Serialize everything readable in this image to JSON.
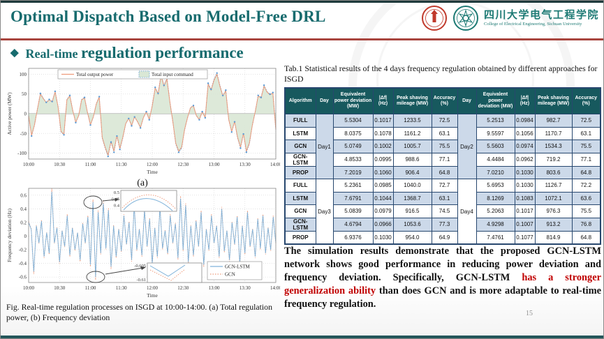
{
  "slide": {
    "title": "Optimal Dispatch Based on Model-Free DRL",
    "page_number": "15",
    "watermark_year": "1896",
    "logo": {
      "cn": "四川大学电气工程学院",
      "en": "College of Electrical Engineering, Sichuan University"
    },
    "section_heading": {
      "bullet": "◆",
      "prefix": "Real-time ",
      "rest": "regulation performance"
    }
  },
  "figure_caption": "Fig. Real-time regulation processes on ISGD at 10:00-14:00. (a) Total regulation power, (b) Frequency deviation",
  "analysis": {
    "seg1": "The simulation results demonstrate that the proposed GCN-LSTM network shows good performance in reducing power deviation and frequency deviation. Specifically, GCN-LSTM ",
    "seg2_red": "has a stronger generalization ability",
    "seg3": " than does GCN and is more adaptable to real-time frequency regulation."
  },
  "table": {
    "caption": "Tab.1 Statistical results of the 4 days frequency regulation obtained by different approaches for ISGD",
    "headers": [
      "Algorithm",
      "Day",
      "Equivalent power deviation (MW)",
      "|Δf| (Hz)",
      "Peak shaving mileage (MW)",
      "Accuracy (%)",
      "Day",
      "Equivalent power deviation (MW)",
      "|Δf| (Hz)",
      "Peak shaving mileage (MW)",
      "Accuracy (%)"
    ],
    "groups": [
      {
        "day_left": "Day1",
        "day_right": "Day2",
        "rows": [
          {
            "algorithm": "FULL",
            "left": [
              "5.5304",
              "0.1017",
              "1233.5",
              "72.5"
            ],
            "right": [
              "5.2513",
              "0.0984",
              "982.7",
              "72.5"
            ]
          },
          {
            "algorithm": "LSTM",
            "left": [
              "8.0375",
              "0.1078",
              "1161.2",
              "63.1"
            ],
            "right": [
              "9.5597",
              "0.1056",
              "1170.7",
              "63.1"
            ]
          },
          {
            "algorithm": "GCN",
            "left": [
              "5.0749",
              "0.1002",
              "1005.7",
              "75.5"
            ],
            "right": [
              "5.5603",
              "0.0974",
              "1534.3",
              "75.5"
            ]
          },
          {
            "algorithm": "GCN-LSTM",
            "left": [
              "4.8533",
              "0.0995",
              "988.6",
              "77.1"
            ],
            "right": [
              "4.4484",
              "0.0962",
              "719.2",
              "77.1"
            ]
          },
          {
            "algorithm": "PROP",
            "left": [
              "7.2019",
              "0.1060",
              "906.4",
              "64.8"
            ],
            "right": [
              "7.0210",
              "0.1030",
              "803.6",
              "64.8"
            ]
          }
        ]
      },
      {
        "day_left": "Day3",
        "day_right": "Day4",
        "rows": [
          {
            "algorithm": "FULL",
            "left": [
              "5.2361",
              "0.0985",
              "1040.0",
              "72.7"
            ],
            "right": [
              "5.6953",
              "0.1030",
              "1126.7",
              "72.2"
            ]
          },
          {
            "algorithm": "LSTM",
            "left": [
              "7.6791",
              "0.1044",
              "1368.7",
              "63.1"
            ],
            "right": [
              "8.1269",
              "0.1083",
              "1072.1",
              "63.6"
            ]
          },
          {
            "algorithm": "GCN",
            "left": [
              "5.0839",
              "0.0979",
              "916.5",
              "74.5"
            ],
            "right": [
              "5.2063",
              "0.1017",
              "976.3",
              "75.5"
            ]
          },
          {
            "algorithm": "GCN-LSTM",
            "left": [
              "4.6794",
              "0.0966",
              "1053.6",
              "77.3"
            ],
            "right": [
              "4.9298",
              "0.1007",
              "913.2",
              "76.8"
            ]
          },
          {
            "algorithm": "PROP",
            "left": [
              "6.9376",
              "0.1030",
              "954.0",
              "64.9"
            ],
            "right": [
              "7.4761",
              "0.1077",
              "814.9",
              "64.8"
            ]
          }
        ]
      }
    ]
  },
  "colors": {
    "teal_accent": "#176b6e",
    "red_divider": "#a8453e",
    "table_header_bg": "#17595e",
    "row_alt_bg": "#ccd9e9",
    "table_border": "#27476e",
    "highlight_red": "#c00000",
    "series_orange": "#ee9b7b",
    "series_blue": "#5b9bd5",
    "area_green": "#d9e7d5"
  },
  "chart_data": [
    {
      "type": "line",
      "caption": "(a)",
      "ylabel": "Active power (MW)",
      "xlabel": "Time",
      "x_ticks": [
        "10:00",
        "10:30",
        "11:00",
        "11:30",
        "12:00",
        "12:30",
        "13:00",
        "13:30",
        "14:00"
      ],
      "y_ticks": [
        100,
        50,
        0,
        -50,
        -100
      ],
      "ylim": [
        -115,
        115
      ],
      "grid": true,
      "legend_position": "top-center",
      "legend": [
        "Total output power",
        "Total input command"
      ],
      "series": [
        {
          "name": "Total output power",
          "color": "#ee9b7b",
          "style": "solid"
        },
        {
          "name": "Total input command",
          "color": "#5b9bd5",
          "style": "dotted",
          "fill": "#d9e7d5"
        }
      ],
      "values": [
        -5,
        -55,
        -28,
        12,
        50,
        38,
        28,
        35,
        30,
        55,
        18,
        -45,
        -52,
        35,
        45,
        8,
        -22,
        -5,
        35,
        40,
        3,
        -28,
        -8,
        25,
        42,
        -60,
        -85,
        -105,
        -70,
        -95,
        -55,
        -88,
        -60,
        -25,
        -12,
        -30,
        -8,
        -20,
        -35,
        -10,
        5,
        -15,
        20,
        65,
        50,
        97,
        70,
        88,
        30,
        -20,
        -75,
        -95,
        -85,
        -40,
        -10,
        15,
        20,
        -5,
        -15,
        5,
        -10,
        75,
        60,
        85,
        100,
        70,
        45,
        58,
        -15,
        -45,
        -20,
        -60,
        -85,
        -50,
        -95,
        -75,
        -30,
        5,
        45,
        40,
        70,
        55,
        48,
        52,
        -40
      ]
    },
    {
      "type": "line",
      "caption": "(b)",
      "ylabel": "Frequency deviation (Hz)",
      "xlabel": "Time",
      "x_ticks": [
        "10:00",
        "10:30",
        "11:00",
        "11:30",
        "12:00",
        "12:30",
        "13:00",
        "13:30",
        "14:00"
      ],
      "y_ticks": [
        0.6,
        0.4,
        0.2,
        0,
        -0.2,
        -0.4,
        -0.6
      ],
      "ylim": [
        -0.68,
        0.7
      ],
      "grid": true,
      "legend_position": "inside-lower-right",
      "legend": [
        "GCN-LSTM",
        "GCN"
      ],
      "series": [
        {
          "name": "GCN-LSTM",
          "color": "#7fb2d9",
          "style": "solid"
        },
        {
          "name": "GCN",
          "color": "#ee9b7b",
          "style": "dotted"
        }
      ],
      "insets": [
        {
          "y_ticks": [
            "0.5",
            "0.45",
            "0.4"
          ],
          "shape": "peak"
        },
        {
          "y_ticks": [
            "-0.605",
            "-0.61"
          ],
          "shape": "valley"
        }
      ],
      "values": [
        0.2,
        0.1,
        -0.52,
        0.15,
        -0.1,
        0.22,
        -0.3,
        0.05,
        -0.25,
        0.65,
        -0.1,
        0.12,
        -0.38,
        0.08,
        -0.15,
        0.3,
        -0.28,
        0.12,
        -0.2,
        0.05,
        -0.35,
        0.18,
        -0.1,
        0.28,
        -0.42,
        0.5,
        -0.6,
        0.35,
        -0.25,
        0.48,
        -0.18,
        0.38,
        -0.45,
        0.15,
        -0.3,
        0.1,
        -0.22,
        0.3,
        -0.12,
        0.2,
        -0.35,
        0.45,
        -0.2,
        0.1,
        -0.28,
        0.38,
        -0.15,
        0.25,
        -0.4,
        0.12,
        -0.3,
        0.42,
        -0.18,
        0.08,
        -0.25,
        0.3,
        -0.1,
        0.18,
        -0.32,
        0.55,
        -0.2,
        0.45,
        -0.38,
        0.15,
        -0.28,
        0.22,
        -0.15,
        0.35,
        -0.42,
        0.1,
        -0.2,
        0.3,
        -0.1,
        0.15,
        -0.3,
        0.4,
        -0.22,
        0.08,
        -0.35,
        0.2,
        -0.12,
        0.28,
        -0.4,
        0.15,
        -0.25,
        0.35,
        -0.15,
        0.1,
        -0.3,
        0.25,
        -0.18,
        0.3,
        -0.25,
        0.12,
        -0.2,
        0.28,
        -0.1
      ]
    }
  ]
}
